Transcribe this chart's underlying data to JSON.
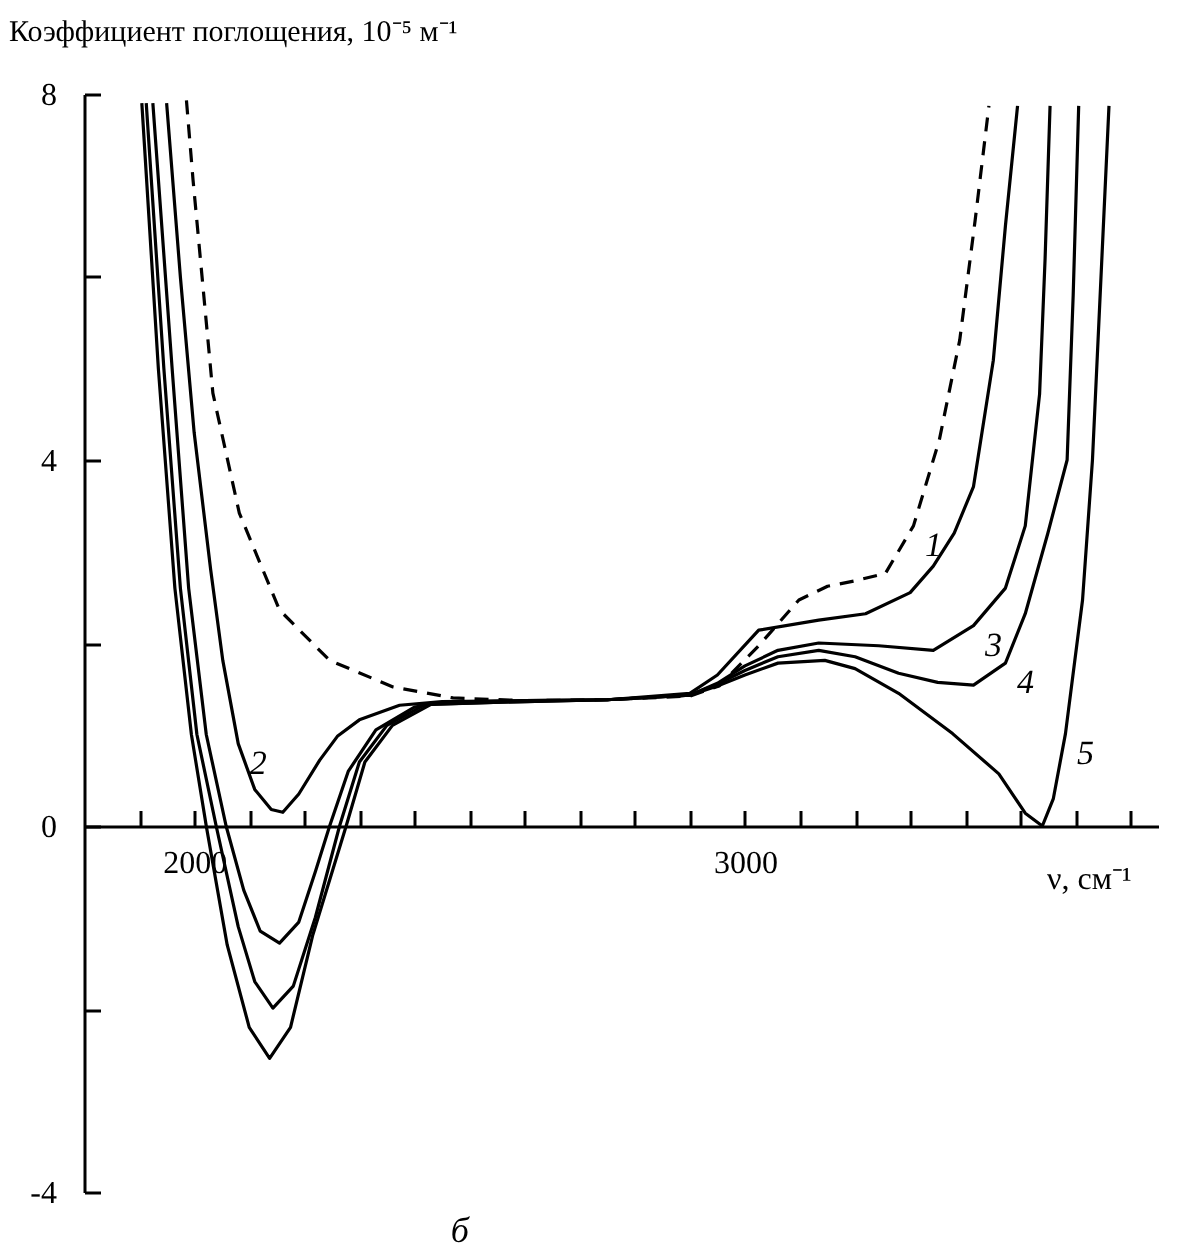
{
  "chart_data": {
    "type": "line",
    "ylabel": "Коэффициент поглощения, 10⁻⁵ м⁻¹",
    "xlabel": "ν, см⁻¹",
    "xlim": [
      1800,
      3750
    ],
    "xticks": [
      {
        "value": 1900,
        "label": null
      },
      2000,
      {
        "value": 2100,
        "label": null
      },
      {
        "value": 2200,
        "label": null
      },
      {
        "value": 2300,
        "label": null
      },
      {
        "value": 2400,
        "label": null
      },
      {
        "value": 2500,
        "label": null
      },
      {
        "value": 2600,
        "label": null
      },
      {
        "value": 2700,
        "label": null
      },
      {
        "value": 2800,
        "label": null
      },
      {
        "value": 2900,
        "label": null
      },
      3000,
      {
        "value": 3100,
        "label": null
      },
      {
        "value": 3200,
        "label": null
      },
      {
        "value": 3300,
        "label": null
      },
      {
        "value": 3400,
        "label": null
      },
      {
        "value": 3500,
        "label": null
      },
      {
        "value": 3600,
        "label": null
      },
      {
        "value": 3700,
        "label": null
      }
    ],
    "ylim": [
      -4,
      8
    ],
    "yticks": [
      -4,
      {
        "value": -2,
        "label": null
      },
      0,
      {
        "value": 2,
        "label": null
      },
      4,
      {
        "value": 6,
        "label": null
      },
      8
    ],
    "marker": "none",
    "series": [
      {
        "color": "#000000",
        "line_style": "dashed",
        "x": [
          1986,
          1998,
          2034,
          2082,
          2155,
          2246,
          2361,
          2470,
          2600,
          2750,
          2900,
          2953,
          3025,
          3098,
          3150,
          3200,
          3255,
          3306,
          3353,
          3390,
          3418,
          3443
        ],
        "values": [
          7.93,
          7.06,
          4.73,
          3.42,
          2.36,
          1.81,
          1.52,
          1.4,
          1.37,
          1.38,
          1.42,
          1.53,
          1.97,
          2.47,
          2.62,
          2.68,
          2.76,
          3.28,
          4.22,
          5.31,
          6.62,
          7.87
        ]
      },
      {
        "color": "#000000",
        "line_style": "solid",
        "x": [
          1950,
          1975,
          2000,
          2030,
          2052,
          2080,
          2110,
          2140,
          2161,
          2190,
          2228,
          2260,
          2300,
          2373,
          2450,
          2600,
          2750,
          2900,
          2950,
          3025,
          3134,
          3219,
          3300,
          3342,
          3380,
          3415,
          3451,
          3473,
          3495
        ],
        "values": [
          7.9,
          6.0,
          4.3,
          2.8,
          1.81,
          0.9,
          0.4,
          0.18,
          0.15,
          0.35,
          0.72,
          0.98,
          1.16,
          1.32,
          1.36,
          1.37,
          1.38,
          1.45,
          1.65,
          2.14,
          2.25,
          2.32,
          2.55,
          2.84,
          3.2,
          3.71,
          5.09,
          6.56,
          7.87
        ]
      },
      {
        "color": "#000000",
        "line_style": "solid",
        "x": [
          1925,
          1960,
          1990,
          2022,
          2058,
          2090,
          2120,
          2155,
          2190,
          2220,
          2246,
          2280,
          2330,
          2400,
          2450,
          2600,
          2750,
          2900,
          2950,
          3000,
          3060,
          3134,
          3243,
          3342,
          3415,
          3473,
          3509,
          3535,
          3545,
          3554
        ],
        "values": [
          7.9,
          5.0,
          2.6,
          1.0,
          0,
          -0.7,
          -1.15,
          -1.28,
          -1.05,
          -0.5,
          0,
          0.6,
          1.05,
          1.3,
          1.35,
          1.37,
          1.38,
          1.43,
          1.56,
          1.75,
          1.92,
          2.0,
          1.97,
          1.92,
          2.19,
          2.6,
          3.28,
          4.72,
          6.2,
          7.87
        ]
      },
      {
        "color": "#000000",
        "line_style": "solid",
        "x": [
          1913,
          1945,
          1975,
          2005,
          2040,
          2080,
          2110,
          2143,
          2180,
          2220,
          2264,
          2300,
          2350,
          2420,
          2600,
          2750,
          2900,
          2950,
          3000,
          3060,
          3134,
          3200,
          3279,
          3350,
          3415,
          3473,
          3509,
          3550,
          3585,
          3596,
          3606
        ],
        "values": [
          7.9,
          5.0,
          2.6,
          1.0,
          0,
          -1.1,
          -1.7,
          -1.99,
          -1.75,
          -1.0,
          0,
          0.7,
          1.1,
          1.33,
          1.36,
          1.38,
          1.43,
          1.55,
          1.7,
          1.85,
          1.92,
          1.85,
          1.67,
          1.57,
          1.54,
          1.78,
          2.32,
          3.2,
          4.0,
          5.8,
          7.87
        ]
      },
      {
        "color": "#000000",
        "line_style": "solid",
        "x": [
          1905,
          1935,
          1965,
          1995,
          2022,
          2060,
          2100,
          2137,
          2175,
          2215,
          2276,
          2310,
          2360,
          2430,
          2600,
          2750,
          2900,
          2950,
          3000,
          3060,
          3145,
          3200,
          3279,
          3377,
          3461,
          3509,
          3540,
          3560,
          3582,
          3613,
          3631,
          3661
        ],
        "values": [
          7.9,
          5.0,
          2.6,
          1.0,
          0,
          -1.3,
          -2.2,
          -2.54,
          -2.2,
          -1.2,
          0,
          0.7,
          1.1,
          1.33,
          1.36,
          1.38,
          1.43,
          1.53,
          1.65,
          1.78,
          1.81,
          1.72,
          1.45,
          1.01,
          0.57,
          0.14,
          0.0,
          0.3,
          1.01,
          2.47,
          4.0,
          7.87
        ]
      }
    ],
    "annotations": [
      {
        "text": "1",
        "x": 3306,
        "y": 3.28
      },
      {
        "text": "2",
        "x": 2080,
        "y": 0.9
      },
      {
        "text": "3",
        "x": 3415,
        "y": 2.19
      },
      {
        "text": "4",
        "x": 3473,
        "y": 1.78
      },
      {
        "text": "5",
        "x": 3582,
        "y": 1.01
      },
      "б"
    ]
  }
}
